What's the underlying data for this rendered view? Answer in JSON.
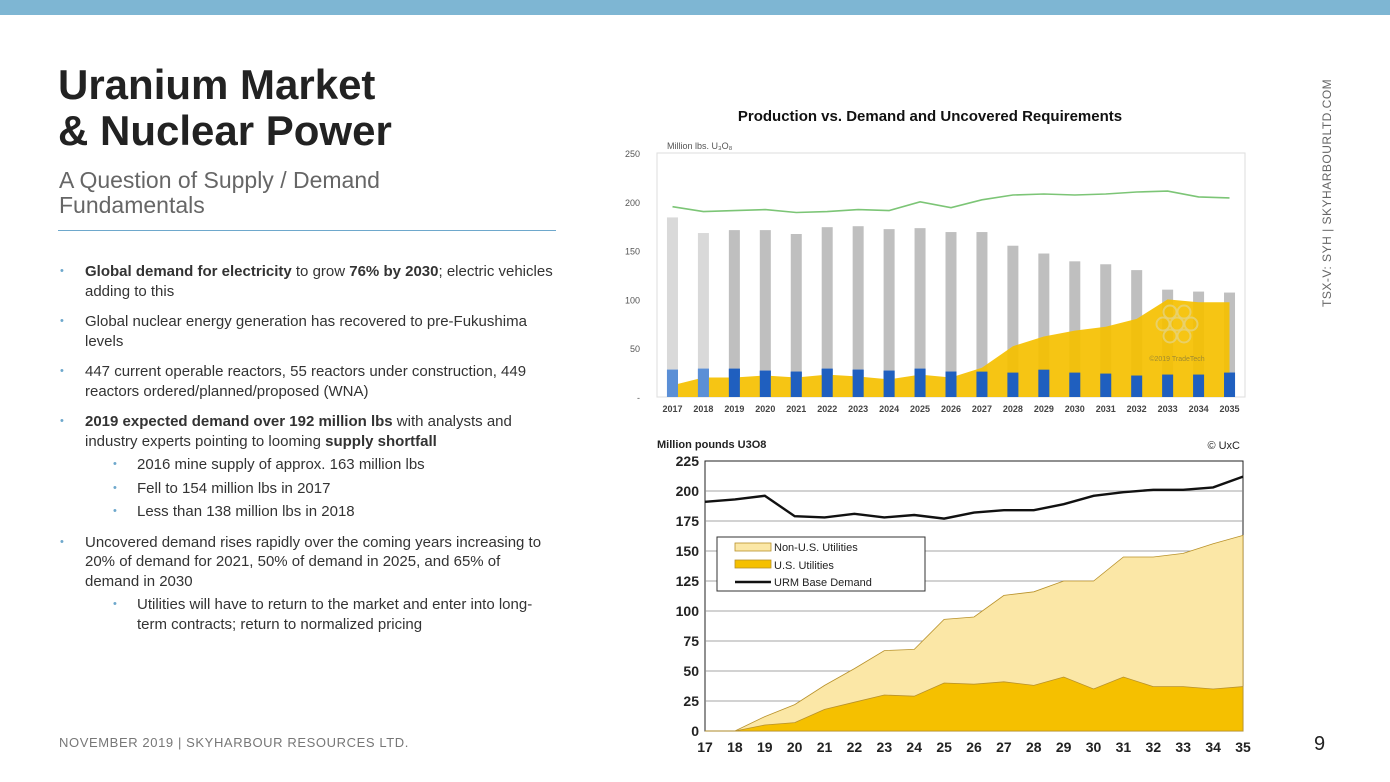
{
  "header": {
    "title_line1": "Uranium Market",
    "title_line2": "& Nuclear Power",
    "subtitle": "A Question of Supply / Demand Fundamentals"
  },
  "bullets": {
    "b1_bold": "Global demand for electricity",
    "b1_mid": " to grow ",
    "b1_bold2": "76% by 2030",
    "b1_rest": "; electric vehicles adding to this",
    "b2": "Global nuclear energy generation has recovered to pre-Fukushima levels",
    "b3": "447 current operable reactors, 55 reactors under construction, 449 reactors ordered/planned/proposed (WNA)",
    "b4_bold": "2019 expected demand over 192 million lbs",
    "b4_mid": " with analysts and industry experts pointing to looming ",
    "b4_bold2": "supply shortfall",
    "b4_sub1": "2016 mine supply of approx. 163 million lbs",
    "b4_sub2": "Fell to 154 million lbs in 2017",
    "b4_sub3": "Less than 138 million lbs in 2018",
    "b5": "Uncovered demand rises rapidly over the coming years increasing to 20% of demand for 2021, 50% of demand in 2025, and 65% of demand in 2030",
    "b5_sub1": "Utilities will have to return to the market and enter into long-term contracts; return to normalized pricing"
  },
  "footer": {
    "text": "NOVEMBER 2019 | SKYHARBOUR RESOURCES LTD.",
    "page": "9",
    "side_text": "TSX-V: SYH | SKYHARBOURLTD.COM"
  },
  "colors": {
    "topbar": "#7eb6d3",
    "accent": "#6ea8cc",
    "title": "#222222",
    "gold": "#f5c000",
    "light_gold": "#fbe7a6",
    "green": "#7cc576",
    "bar_light": "#d9d9d9",
    "bar_gray": "#bfbfbf",
    "bar_blue": "#5b8fd6",
    "bar_dark_blue": "#1f5fbf"
  },
  "chart_data": [
    {
      "type": "bar",
      "title": "Production vs. Demand and Uncovered Requirements",
      "ylabel": "Million lbs. U₃O₈",
      "watermark": "©2019 TradeTech",
      "ylim": [
        0,
        250
      ],
      "yticks": [
        "250",
        "200",
        "150",
        "100",
        "50",
        "-"
      ],
      "grid": false,
      "categories": [
        "2017",
        "2018",
        "2019",
        "2020",
        "2021",
        "2022",
        "2023",
        "2024",
        "2025",
        "2026",
        "2027",
        "2028",
        "2029",
        "2030",
        "2031",
        "2032",
        "2033",
        "2034",
        "2035"
      ],
      "series": [
        {
          "name": "",
          "kind": "stacked-bar-bottom",
          "values": [
            28,
            29,
            29,
            27,
            26,
            29,
            28,
            27,
            29,
            26,
            26,
            25,
            28,
            25,
            24,
            22,
            23,
            23,
            25
          ]
        },
        {
          "name": "",
          "kind": "stacked-bar-top",
          "values": [
            156,
            139,
            142,
            144,
            141,
            145,
            147,
            145,
            144,
            143,
            143,
            130,
            119,
            114,
            112,
            108,
            87,
            85,
            82
          ]
        },
        {
          "name": "",
          "kind": "area",
          "values": [
            12,
            20,
            20,
            22,
            20,
            23,
            21,
            18,
            23,
            20,
            30,
            52,
            62,
            68,
            72,
            80,
            100,
            97,
            97
          ]
        },
        {
          "name": "",
          "kind": "line",
          "values": [
            195,
            190,
            191,
            192,
            189,
            190,
            192,
            191,
            200,
            194,
            202,
            207,
            208,
            207,
            208,
            210,
            211,
            205,
            204
          ]
        }
      ]
    },
    {
      "type": "area",
      "title": "",
      "ylabel": "Million pounds U3O8",
      "source": "© UxC",
      "ylim": [
        0,
        225
      ],
      "yticks": [
        0,
        25,
        50,
        75,
        100,
        125,
        150,
        175,
        200,
        225
      ],
      "grid": true,
      "legend_position": "left",
      "x": [
        "17",
        "18",
        "19",
        "20",
        "21",
        "22",
        "23",
        "24",
        "25",
        "26",
        "27",
        "28",
        "29",
        "30",
        "31",
        "32",
        "33",
        "34",
        "35"
      ],
      "series": [
        {
          "name": "Non-U.S. Utilities",
          "kind": "area-cumulative",
          "values": [
            0,
            0,
            12,
            22,
            38,
            52,
            67,
            68,
            93,
            95,
            113,
            116,
            125,
            125,
            145,
            145,
            148,
            156,
            163
          ]
        },
        {
          "name": "U.S. Utilities",
          "kind": "area",
          "values": [
            0,
            0,
            5,
            7,
            18,
            24,
            30,
            29,
            40,
            39,
            41,
            38,
            45,
            35,
            45,
            37,
            37,
            35,
            37
          ]
        },
        {
          "name": "URM Base Demand",
          "kind": "line",
          "values": [
            191,
            193,
            196,
            179,
            178,
            181,
            178,
            180,
            177,
            182,
            184,
            184,
            189,
            196,
            199,
            201,
            201,
            203,
            212
          ]
        }
      ]
    }
  ]
}
